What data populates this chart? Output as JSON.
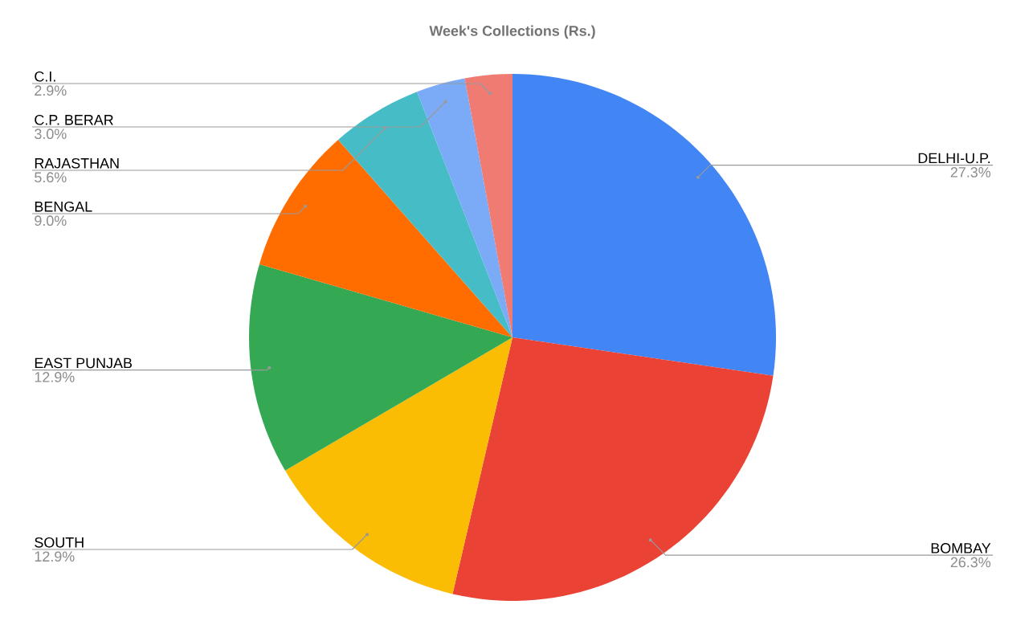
{
  "chart_data": {
    "type": "pie",
    "title": "Week's Collections (Rs.)",
    "categories": [
      "DELHI-U.P.",
      "BOMBAY",
      "SOUTH",
      "EAST PUNJAB",
      "BENGAL",
      "RAJASTHAN",
      "C.P. BERAR",
      "C.I."
    ],
    "values": [
      27.3,
      26.3,
      12.9,
      12.9,
      9.0,
      5.6,
      3.0,
      2.9
    ],
    "value_labels": [
      "27.3%",
      "26.3%",
      "12.9%",
      "12.9%",
      "9.0%",
      "5.6%",
      "3.0%",
      "2.9%"
    ],
    "colors": [
      "#4285f4",
      "#ea4335",
      "#fbbc04",
      "#34a853",
      "#ff6d01",
      "#46bdc6",
      "#7baaf7",
      "#f07b72"
    ]
  }
}
